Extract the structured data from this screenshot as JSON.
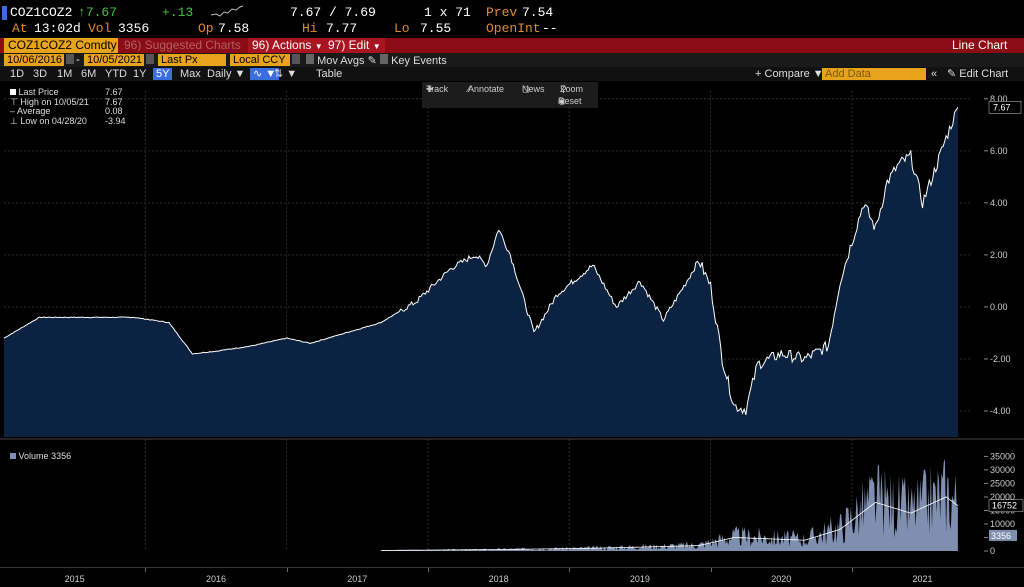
{
  "quote": {
    "ticker": "COZ1COZ2",
    "last": "7.67",
    "change": "+.13",
    "bid_ask": "7.67 / 7.69",
    "size": "1 x 71",
    "prev_label": "Prev",
    "prev": "7.54",
    "at_label": "At",
    "time": "13:02d",
    "vol_label": "Vol",
    "vol": "3356",
    "op_label": "Op",
    "op": "7.58",
    "hi_label": "Hi",
    "hi": "7.77",
    "lo_label": "Lo",
    "lo": "7.55",
    "openint_label": "OpenInt",
    "openint": "--"
  },
  "menubar": {
    "security": "COZ1COZ2 Comdty",
    "suggested": "96) Suggested Charts",
    "actions": "96) Actions",
    "edit": "97) Edit",
    "title": "Line Chart"
  },
  "fields": {
    "start_date": "10/06/2016",
    "end_date": "10/05/2021",
    "field": "Last Px",
    "currency": "Local CCY",
    "mov_avgs": "Mov Avgs",
    "key_events": "Key Events"
  },
  "range": {
    "buttons": [
      "1D",
      "3D",
      "1M",
      "6M",
      "YTD",
      "1Y",
      "5Y",
      "Max"
    ],
    "selected": "5Y",
    "frequency": "Daily",
    "table": "Table",
    "compare": "Compare",
    "add_data": "Add Data",
    "edit_chart": "Edit Chart"
  },
  "toolbar": {
    "track": "Track",
    "annotate": "Annotate",
    "news": "News",
    "zoom": "Zoom",
    "reset": "Reset"
  },
  "legend": {
    "items": [
      {
        "label": "Last Price",
        "value": "7.67"
      },
      {
        "label": "High on 10/05/21",
        "value": "7.67"
      },
      {
        "label": "Average",
        "value": "0.08"
      },
      {
        "label": "Low on 04/28/20",
        "value": "-3.94"
      }
    ],
    "volume_label": "Volume",
    "volume_value": "3356"
  },
  "colors": {
    "area_fill": "#0b2340",
    "line": "#ffffff",
    "volume_fill": "#7f8fb0",
    "accent": "#e8a31c",
    "header_red": "#8b0c14"
  },
  "chart_data": {
    "type": "area",
    "series": [
      {
        "name": "Last Price",
        "x": [
          "2015-01",
          "2015-04",
          "2015-08",
          "2015-12",
          "2016-03",
          "2016-05",
          "2016-07",
          "2016-10",
          "2017-01",
          "2017-03",
          "2017-06",
          "2017-09",
          "2017-12",
          "2018-03",
          "2018-05",
          "2018-06",
          "2018-07",
          "2018-08",
          "2018-10",
          "2018-12",
          "2019-03",
          "2019-05",
          "2019-07",
          "2019-09",
          "2019-11",
          "2019-12",
          "2020-01",
          "2020-02",
          "2020-03",
          "2020-04",
          "2020-05",
          "2020-07",
          "2020-09",
          "2020-11",
          "2020-12",
          "2021-01",
          "2021-02",
          "2021-03",
          "2021-04",
          "2021-05",
          "2021-06",
          "2021-07",
          "2021-08",
          "2021-09",
          "2021-10"
        ],
        "y": [
          -1.2,
          -0.4,
          -0.4,
          -0.4,
          -0.6,
          -1.8,
          -1.7,
          -1.5,
          -1.2,
          -1.4,
          -1.0,
          -0.6,
          0.2,
          1.5,
          2.0,
          1.6,
          3.0,
          2.0,
          -1.0,
          0.5,
          1.6,
          0.0,
          1.0,
          -0.5,
          1.0,
          1.8,
          0.8,
          -2.0,
          -3.8,
          -3.94,
          -2.2,
          -1.8,
          -2.0,
          -1.5,
          1.0,
          2.5,
          4.0,
          3.0,
          4.8,
          5.5,
          5.8,
          4.0,
          5.2,
          6.5,
          7.67
        ]
      },
      {
        "name": "Volume",
        "x": [
          "2017-09",
          "2018-06",
          "2019-03",
          "2019-12",
          "2020-03",
          "2020-09",
          "2020-12",
          "2021-03",
          "2021-06",
          "2021-09",
          "2021-10"
        ],
        "y": [
          200,
          500,
          1000,
          2000,
          5000,
          4000,
          8000,
          18000,
          14000,
          20000,
          16752
        ]
      }
    ],
    "x_tick_labels": [
      "2015",
      "2016",
      "2017",
      "2018",
      "2019",
      "2020",
      "2021"
    ],
    "y_tick_labels": [
      "8.00",
      "6.00",
      "4.00",
      "2.00",
      "0.00",
      "-2.00",
      "-4.00"
    ],
    "ylim": [
      -5,
      8.3
    ],
    "volume_tick_labels": [
      "35000",
      "30000",
      "25000",
      "20000",
      "15000",
      "10000",
      "5000",
      "0"
    ],
    "volume_ylim": [
      0,
      37000
    ],
    "last_price_label": "7.67",
    "volume_ma_label": "16752",
    "volume_last_label": "3356",
    "grid": true
  }
}
